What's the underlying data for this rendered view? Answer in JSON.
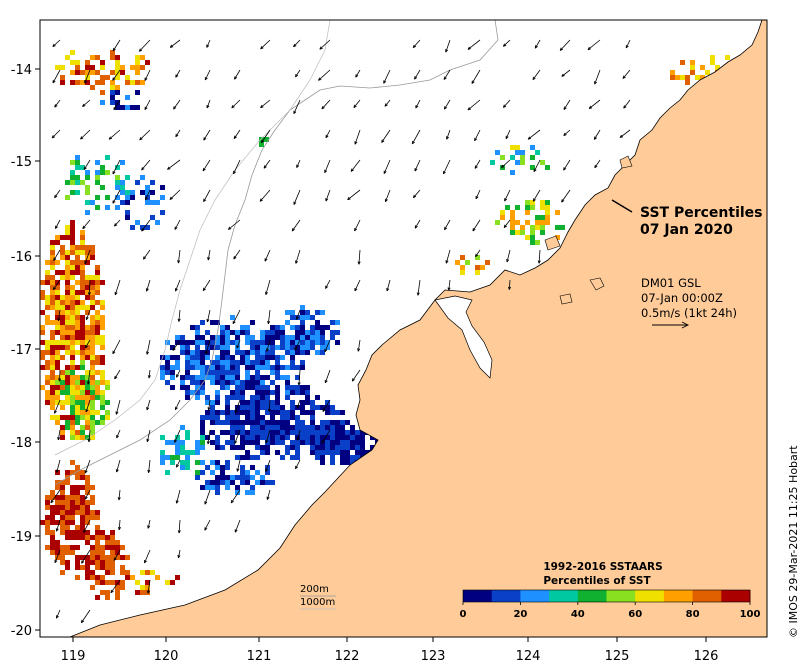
{
  "map": {
    "x_ticks": [
      "119",
      "120",
      "121",
      "122",
      "123",
      "124",
      "125",
      "126"
    ],
    "y_ticks": [
      "-14",
      "-15",
      "-16",
      "-17",
      "-18",
      "-19",
      "-20"
    ],
    "land_color": "#ffcc99",
    "sea_color": "#ffffff"
  },
  "title": {
    "line1": "SST Percentiles",
    "line2": "07 Jan 2020"
  },
  "current_info": {
    "line1": "DM01 GSL",
    "line2": "07-Jan 00:00Z",
    "line3": "0.5m/s (1kt 24h)"
  },
  "isobaths": {
    "label1": "200m",
    "label2": "1000m"
  },
  "legend": {
    "title1": "1992-2016 SSTAARS",
    "title2": "Percentiles of SST",
    "tick_labels": [
      "0",
      "20",
      "40",
      "60",
      "80",
      "100"
    ],
    "colors": [
      "#000080",
      "#0a3fc8",
      "#1e90ff",
      "#00c8a0",
      "#10b030",
      "#88e020",
      "#f0e000",
      "#ffa000",
      "#e06000",
      "#aa0000"
    ]
  },
  "credit": "© IMOS 29-Mar-2021 11:25 Hobart"
}
